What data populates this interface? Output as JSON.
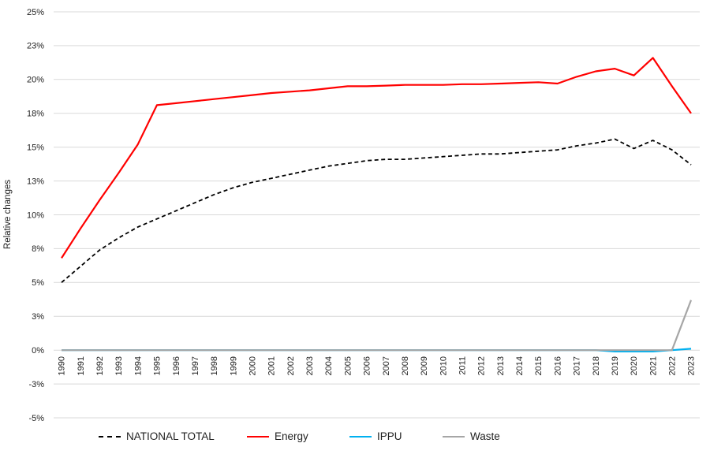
{
  "chart_data": {
    "type": "line",
    "title": "",
    "xlabel": "",
    "ylabel": "Relative changes",
    "legend_position": "bottom",
    "grid": "horizontal",
    "background": "#ffffff",
    "y_axis": {
      "min": -5,
      "max": 25,
      "step": 2.5,
      "tick_values": [
        25,
        22.5,
        20,
        17.5,
        15,
        12.5,
        10,
        7.5,
        5,
        2.5,
        0,
        -2.5,
        -5
      ],
      "tick_labels": [
        "25%",
        "23%",
        "20%",
        "18%",
        "15%",
        "13%",
        "10%",
        "8%",
        "5%",
        "3%",
        "0%",
        "-3%",
        "-5%"
      ]
    },
    "x_categories": [
      "1990",
      "1991",
      "1992",
      "1993",
      "1994",
      "1995",
      "1996",
      "1997",
      "1998",
      "1999",
      "2000",
      "2001",
      "2002",
      "2003",
      "2004",
      "2005",
      "2006",
      "2007",
      "2008",
      "2009",
      "2010",
      "2011",
      "2012",
      "2013",
      "2014",
      "2015",
      "2016",
      "2017",
      "2018",
      "2019",
      "2020",
      "2021",
      "2022",
      "2023"
    ],
    "series": [
      {
        "name": "NATIONAL TOTAL",
        "color": "#000000",
        "style": "dashed",
        "values": [
          5.0,
          6.2,
          7.4,
          8.3,
          9.1,
          9.7,
          10.3,
          10.9,
          11.5,
          12.0,
          12.4,
          12.7,
          13.0,
          13.3,
          13.6,
          13.8,
          14.0,
          14.1,
          14.1,
          14.2,
          14.3,
          14.4,
          14.5,
          14.5,
          14.6,
          14.7,
          14.8,
          15.1,
          15.3,
          15.6,
          14.9,
          15.5,
          14.8,
          13.7
        ]
      },
      {
        "name": "Energy",
        "color": "#ff0000",
        "style": "solid",
        "values": [
          6.8,
          9.0,
          11.1,
          13.1,
          15.2,
          18.1,
          18.25,
          18.4,
          18.55,
          18.7,
          18.85,
          19.0,
          19.1,
          19.2,
          19.35,
          19.5,
          19.5,
          19.55,
          19.6,
          19.6,
          19.6,
          19.65,
          19.65,
          19.7,
          19.75,
          19.8,
          19.7,
          20.2,
          20.6,
          20.8,
          20.3,
          21.6,
          19.5,
          17.5
        ]
      },
      {
        "name": "IPPU",
        "color": "#00b0f0",
        "style": "solid",
        "values": [
          0,
          0,
          0,
          0,
          0,
          0,
          0,
          0,
          0,
          0,
          0,
          0,
          0,
          0,
          0,
          0,
          0,
          0,
          0,
          0,
          0,
          0,
          0,
          0,
          0,
          0,
          0,
          0,
          0,
          -0.1,
          -0.1,
          -0.1,
          0.0,
          0.1
        ]
      },
      {
        "name": "Waste",
        "color": "#a6a6a6",
        "style": "solid",
        "values": [
          0,
          0,
          0,
          0,
          0,
          0,
          0,
          0,
          0,
          0,
          0,
          0,
          0,
          0,
          0,
          0,
          0,
          0,
          0,
          0,
          0,
          0,
          0,
          0,
          0,
          0,
          0,
          0,
          0,
          0,
          0,
          0,
          0,
          3.7
        ]
      }
    ]
  },
  "colors": {
    "gridline": "#d9d9d9",
    "axis_text": "#1f1f1f"
  }
}
